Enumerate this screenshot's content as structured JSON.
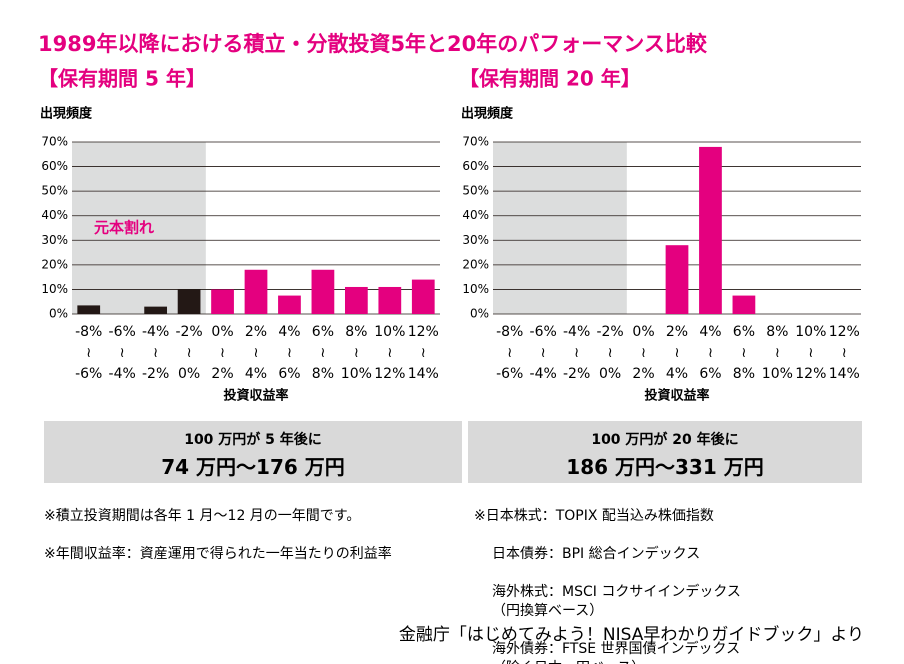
{
  "title": "1989年以降における積立・分散投資5年と20年のパフォーマンス比較",
  "chart_data": [
    {
      "type": "bar",
      "title": "【保有期間 5 年】",
      "y_label": "出現頻度",
      "x_label": "投資収益率",
      "categories": [
        "-8%\n≀\n-6%",
        "-6%\n≀\n-4%",
        "-4%\n≀\n-2%",
        "-2%\n≀\n0%",
        "0%\n≀\n2%",
        "2%\n≀\n4%",
        "4%\n≀\n6%",
        "6%\n≀\n8%",
        "8%\n≀\n10%",
        "10%\n≀\n12%",
        "12%\n≀\n14%"
      ],
      "values": [
        3.5,
        0,
        3,
        10,
        10,
        18,
        7.5,
        18,
        11,
        11,
        14
      ],
      "colors": [
        "#231815",
        "#231815",
        "#231815",
        "#231815",
        "#e4007f",
        "#e4007f",
        "#e4007f",
        "#e4007f",
        "#e4007f",
        "#e4007f",
        "#e4007f"
      ],
      "shade_count": 4,
      "annotation": "元本割れ",
      "ylim": [
        0,
        70
      ],
      "yticks": [
        {
          "value": 0,
          "label": "0%"
        },
        {
          "value": 10,
          "label": "10%"
        },
        {
          "value": 20,
          "label": "20%"
        },
        {
          "value": 30,
          "label": "30%"
        },
        {
          "value": 40,
          "label": "40%"
        },
        {
          "value": 50,
          "label": "50%"
        },
        {
          "value": 60,
          "label": "60%"
        },
        {
          "value": 70,
          "label": "70%"
        }
      ],
      "grid": true
    },
    {
      "type": "bar",
      "title": "【保有期間 20 年】",
      "y_label": "出現頻度",
      "x_label": "投資収益率",
      "categories": [
        "-8%\n≀\n-6%",
        "-6%\n≀\n-4%",
        "-4%\n≀\n-2%",
        "-2%\n≀\n0%",
        "0%\n≀\n2%",
        "2%\n≀\n4%",
        "4%\n≀\n6%",
        "6%\n≀\n8%",
        "8%\n≀\n10%",
        "10%\n≀\n12%",
        "12%\n≀\n14%"
      ],
      "values": [
        0,
        0,
        0,
        0,
        0,
        28,
        68,
        7.5,
        0,
        0,
        0
      ],
      "colors": [
        "#e4007f",
        "#e4007f",
        "#e4007f",
        "#e4007f",
        "#e4007f",
        "#e4007f",
        "#e4007f",
        "#e4007f",
        "#e4007f",
        "#e4007f",
        "#e4007f"
      ],
      "shade_count": 4,
      "ylim": [
        0,
        70
      ],
      "yticks": [
        {
          "value": 0,
          "label": "0%"
        },
        {
          "value": 10,
          "label": "10%"
        },
        {
          "value": 20,
          "label": "20%"
        },
        {
          "value": 30,
          "label": "30%"
        },
        {
          "value": 40,
          "label": "40%"
        },
        {
          "value": 50,
          "label": "50%"
        },
        {
          "value": 60,
          "label": "60%"
        },
        {
          "value": 70,
          "label": "70%"
        }
      ],
      "grid": true
    }
  ],
  "summaries": [
    {
      "line1": "100 万円が 5 年後に",
      "line2": "74 万円～176 万円"
    },
    {
      "line1": "100 万円が 20 年後に",
      "line2": "186 万円～331 万円"
    }
  ],
  "notes": [
    [
      "※積立投資期間は各年 1 月～12 月の一年間です。",
      "※年間収益率：資産運用で得られた一年当たりの利益率"
    ],
    [
      "※日本株式：TOPIX 配当込み株価指数",
      "日本債券：BPI 総合インデックス",
      "海外株式：MSCI コクサイインデックス\n（円換算ベース）",
      "海外債券：FTSE 世界国債インデックス\n（除く日本、円ベース）"
    ]
  ],
  "source": "金融庁「はじめてみよう！NISA早わかりガイドブック」より"
}
